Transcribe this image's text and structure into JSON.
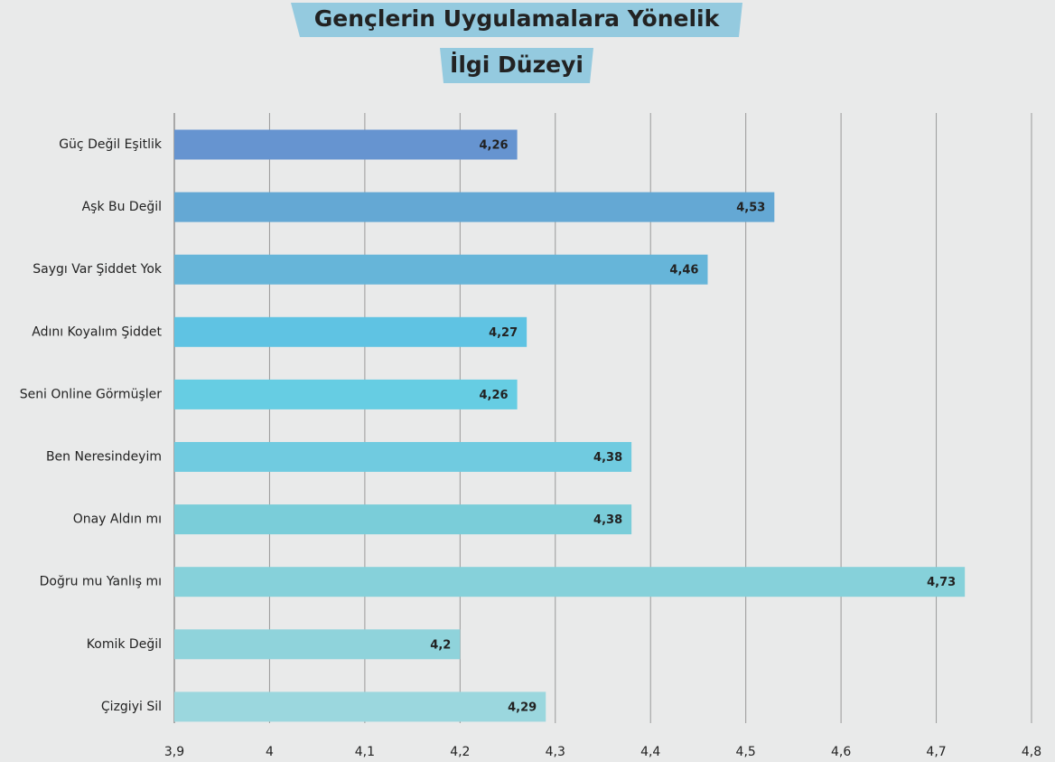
{
  "chart_data": {
    "type": "barh",
    "title_lines": [
      "Gençlerin Uygulamalara Yönelik",
      "İlgi Düzeyi"
    ],
    "categories": [
      "Güç Değil Eşitlik",
      "Aşk Bu Değil",
      "Saygı Var Şiddet Yok",
      "Adını Koyalım Şiddet",
      "Seni Online Görmüşler",
      "Ben Neresindeyim",
      "Onay Aldın mı",
      "Doğru mu Yanlış mı",
      "Komik Değil",
      "Çizgiyi Sil"
    ],
    "values": [
      4.26,
      4.53,
      4.46,
      4.27,
      4.26,
      4.38,
      4.38,
      4.73,
      4.2,
      4.29
    ],
    "value_labels": [
      "4,26",
      "4,53",
      "4,46",
      "4,27",
      "4,26",
      "4,38",
      "4,38",
      "4,73",
      "4,2",
      "4,29"
    ],
    "colors": [
      "#6694d0",
      "#64a8d4",
      "#66b5d9",
      "#5fc3e3",
      "#66cde3",
      "#70cbe0",
      "#7acdd9",
      "#86d1da",
      "#8fd3db",
      "#9bd7de"
    ],
    "xlim": [
      3.9,
      4.8
    ],
    "xticks": [
      {
        "value": 3.9,
        "label": "3,9"
      },
      4,
      {
        "value": 4.1,
        "label": "4,1"
      },
      {
        "value": 4.2,
        "label": "4,2"
      },
      {
        "value": 4.3,
        "label": "4,3"
      },
      {
        "value": 4.4,
        "label": "4,4"
      },
      {
        "value": 4.5,
        "label": "4,5"
      },
      {
        "value": 4.6,
        "label": "4,6"
      },
      {
        "value": 4.7,
        "label": "4,7"
      },
      {
        "value": 4.8,
        "label": "4,8"
      }
    ],
    "grid": true
  }
}
